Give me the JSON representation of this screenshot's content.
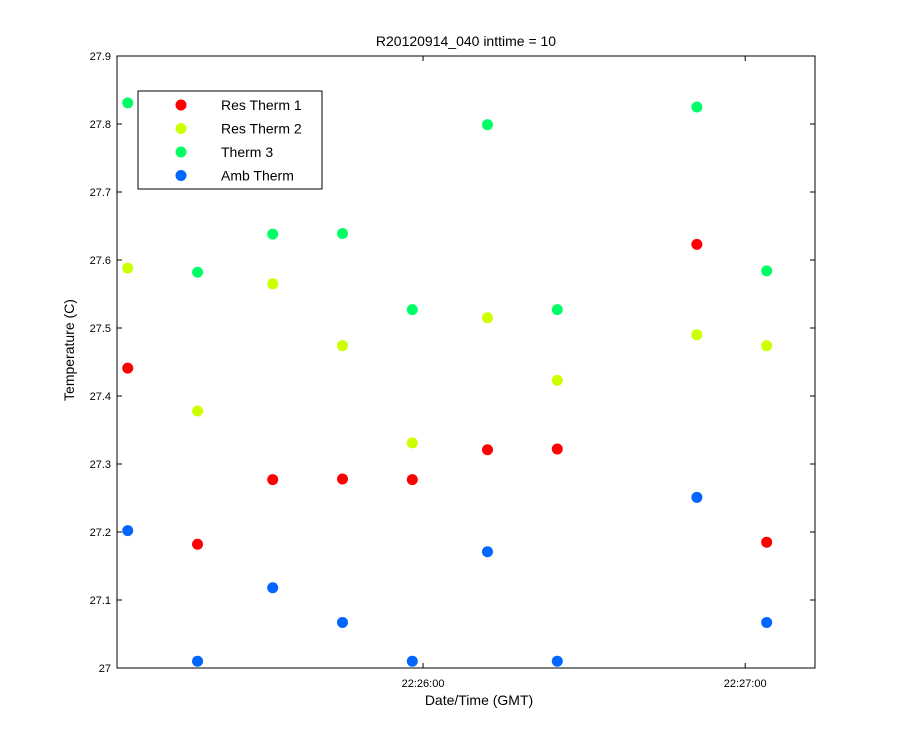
{
  "chart_data": {
    "type": "scatter",
    "title": "R20120914_040 inttime = 10",
    "xlabel": "Date/Time (GMT)",
    "ylabel": "Temperature (C)",
    "xlim": [
      "22:25:03",
      "22:27:13"
    ],
    "ylim": [
      27.0,
      27.9
    ],
    "yticks": [
      "27",
      "27.1",
      "27.2",
      "27.3",
      "27.4",
      "27.5",
      "27.6",
      "27.7",
      "27.8",
      "27.9"
    ],
    "ytick_values": [
      27.0,
      27.1,
      27.2,
      27.3,
      27.4,
      27.5,
      27.6,
      27.7,
      27.8,
      27.9
    ],
    "xticks": [
      "22:26:00",
      "22:27:00"
    ],
    "xtick_values": [
      "22:26:00",
      "22:27:00"
    ],
    "legend_placement": "top-left",
    "grid": false,
    "x": [
      "22:25:05",
      "22:25:18",
      "22:25:32",
      "22:25:45",
      "22:25:58",
      "22:26:12",
      "22:26:25",
      "22:26:38",
      "22:26:51",
      "22:27:04"
    ],
    "series": [
      {
        "name": "Res Therm 1",
        "color": "#ff0000",
        "values": [
          27.441,
          27.182,
          27.277,
          27.278,
          27.277,
          27.321,
          27.322,
          null,
          27.623,
          27.185
        ]
      },
      {
        "name": "Res Therm 2",
        "color": "#ccff00",
        "values": [
          27.588,
          27.378,
          27.565,
          27.474,
          27.331,
          27.515,
          27.423,
          null,
          27.49,
          27.474
        ]
      },
      {
        "name": "Therm 3",
        "color": "#00ff66",
        "values": [
          27.831,
          27.582,
          27.638,
          27.639,
          27.527,
          27.799,
          27.527,
          null,
          27.825,
          27.584
        ]
      },
      {
        "name": "Amb Therm",
        "color": "#0066ff",
        "values": [
          27.202,
          27.01,
          27.118,
          27.067,
          27.01,
          27.171,
          27.01,
          null,
          27.251,
          27.067
        ]
      }
    ]
  }
}
